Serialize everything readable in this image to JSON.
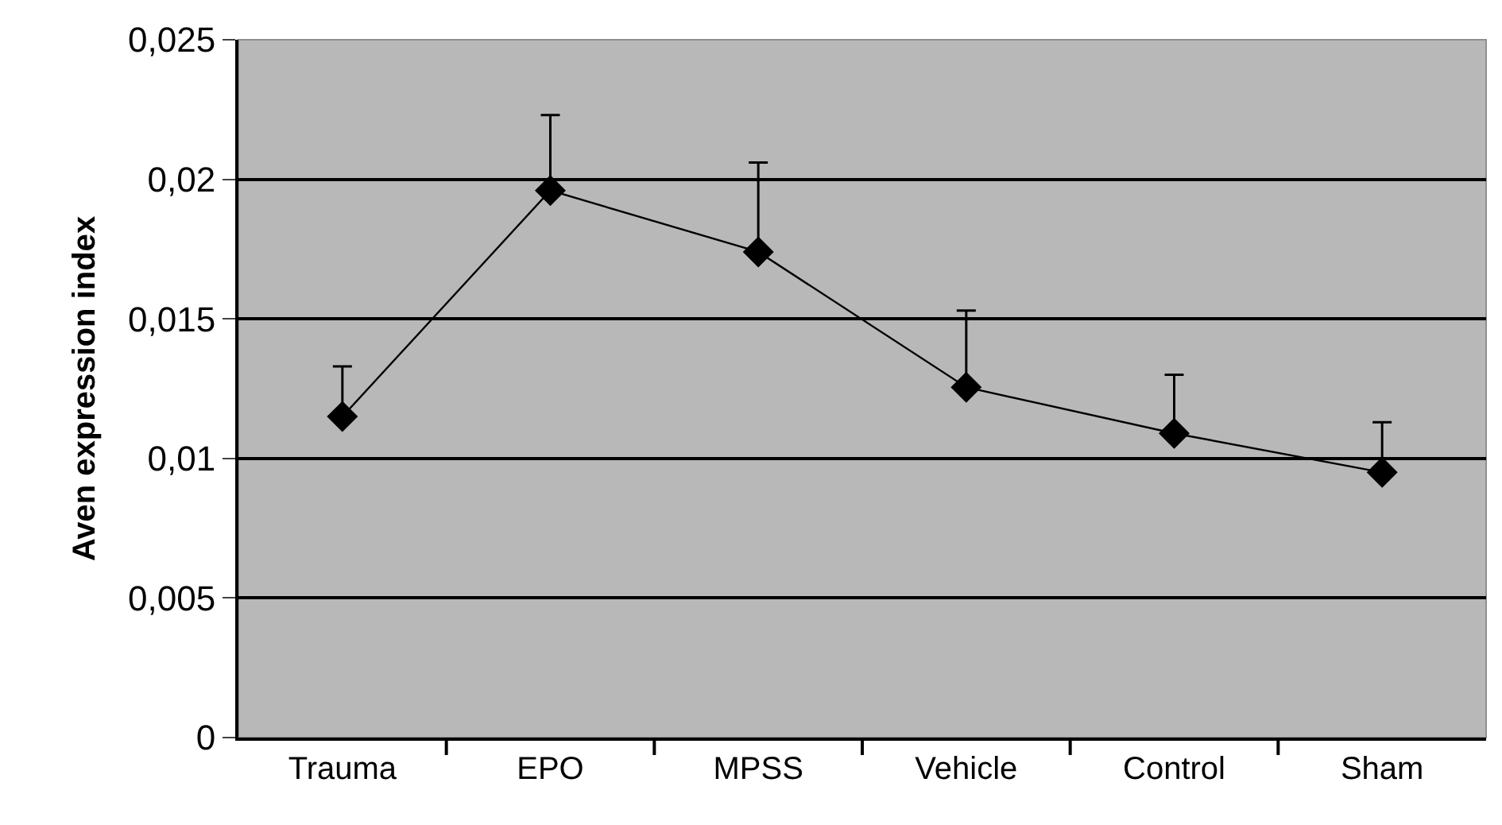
{
  "chart_data": {
    "type": "line",
    "ylabel": "Aven expression index",
    "categories": [
      "Trauma",
      "EPO",
      "MPSS",
      "Vehicle",
      "Control",
      "Sham"
    ],
    "series": [
      {
        "color": "#000000",
        "values": [
          0.0115,
          0.0196,
          0.0174,
          0.01255,
          0.0109,
          0.0095
        ],
        "errors": [
          [
            0.0115,
            0.0133
          ],
          [
            0.0196,
            0.0223
          ],
          [
            0.0174,
            0.0206
          ],
          [
            0.01255,
            0.0153
          ],
          [
            0.0109,
            0.013
          ],
          [
            0.0095,
            0.0113
          ]
        ]
      }
    ],
    "ylim": [
      0,
      0.025
    ],
    "yticks": [
      {
        "value": 0,
        "label": "0"
      },
      {
        "value": 0.005,
        "label": "0,005"
      },
      {
        "value": 0.01,
        "label": "0,01"
      },
      {
        "value": 0.015,
        "label": "0,015"
      },
      {
        "value": 0.02,
        "label": "0,02"
      },
      {
        "value": 0.025,
        "label": "0,025"
      }
    ],
    "grid": "y",
    "marker": "diamond",
    "line_style": "solid"
  }
}
